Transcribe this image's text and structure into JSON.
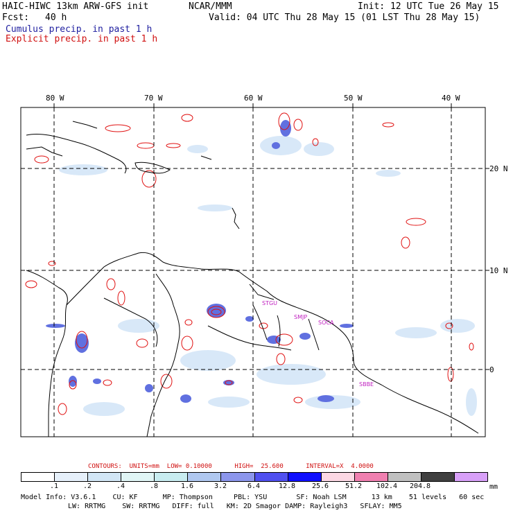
{
  "header": {
    "model_title": "HAIC-HIWC 13km ARW-GFS init",
    "org": "NCAR/MMM",
    "init": "Init: 12 UTC Tue 26 May 15",
    "fcst_label": "Fcst:",
    "fcst_value": "40 h",
    "valid": "Valid: 04 UTC Thu 28 May 15 (01 LST Thu 28 May 15)",
    "legend_cumulus": "Cumulus precip. in past 1 h",
    "legend_explicit": "Explicit precip. in past 1 h"
  },
  "map": {
    "lon_labels": [
      "80 W",
      "70 W",
      "60 W",
      "50 W",
      "40 W"
    ],
    "lat_labels": [
      "20 N",
      "10 N",
      "0"
    ],
    "region_labels": [
      "STGU",
      "SMJP",
      "SOCA",
      "SBBE"
    ]
  },
  "contours": {
    "text": "CONTOURS:  UNITS=mm  LOW= 0.10000      HIGH=  25.600      INTERVAL=X  4.0000"
  },
  "colorbar": {
    "ticks": [
      ".1",
      ".2",
      ".4",
      ".8",
      "1.6",
      "3.2",
      "6.4",
      "12.8",
      "25.6",
      "51.2",
      "102.4",
      "204.8"
    ],
    "unit": "mm",
    "colors": [
      "#ffffff",
      "#e6f0fa",
      "#d2e6f5",
      "#e0f5f5",
      "#c8ecf0",
      "#b0c8f0",
      "#8c96ec",
      "#5050f0",
      "#1010ff",
      "#fcd8e4",
      "#f080b0",
      "#c0c0c0",
      "#404040",
      "#d8a0f8"
    ]
  },
  "footer": {
    "line1": "Model Info: V3.6.1    CU: KF      MP: Thompson     PBL: YSU       SF: Noah LSM      13 km    51 levels   60 sec",
    "line2": "LW: RRTMG    SW: RRTMG   DIFF: full   KM: 2D Smagor DAMP: Rayleigh3   SFLAY: MM5"
  }
}
